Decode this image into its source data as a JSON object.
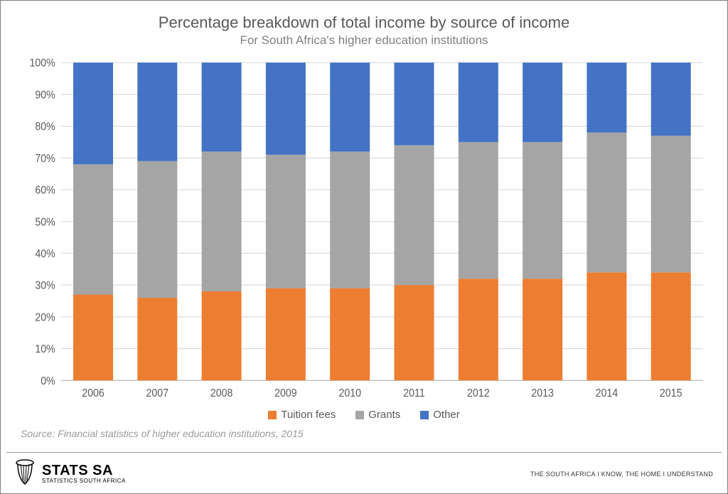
{
  "chart": {
    "type": "stacked-bar",
    "title": "Percentage breakdown of total income by source of income",
    "subtitle": "For South Africa's higher education institutions",
    "source": "Source: Financial statistics of higher education institutions, 2015",
    "categories": [
      "2006",
      "2007",
      "2008",
      "2009",
      "2010",
      "2011",
      "2012",
      "2013",
      "2014",
      "2015"
    ],
    "series": [
      {
        "name": "Tuition fees",
        "color": "#ed7d31",
        "values": [
          27,
          26,
          28,
          29,
          29,
          30,
          32,
          32,
          34,
          34
        ]
      },
      {
        "name": "Grants",
        "color": "#a5a5a5",
        "values": [
          41,
          43,
          44,
          42,
          43,
          44,
          43,
          43,
          44,
          43
        ]
      },
      {
        "name": "Other",
        "color": "#4472c4",
        "values": [
          32,
          31,
          28,
          29,
          28,
          26,
          25,
          25,
          22,
          23
        ]
      }
    ],
    "y_axis": {
      "min": 0,
      "max": 100,
      "tick_step": 10,
      "suffix": "%",
      "labels": [
        "0%",
        "10%",
        "20%",
        "30%",
        "40%",
        "50%",
        "60%",
        "70%",
        "80%",
        "90%",
        "100%"
      ]
    },
    "style": {
      "title_fontsize": 22,
      "subtitle_fontsize": 17,
      "title_color": "#595959",
      "subtitle_color": "#808080",
      "axis_label_fontsize": 14,
      "axis_label_color": "#595959",
      "grid_color": "#d9d9d9",
      "baseline_color": "#b0b0b0",
      "background_color": "#ffffff",
      "bar_width_ratio": 0.62,
      "legend_fontsize": 15
    }
  },
  "footer": {
    "brand_main": "STATS SA",
    "brand_sub": "STATISTICS SOUTH AFRICA",
    "tagline": "THE SOUTH AFRICA I KNOW, THE HOME I UNDERSTAND"
  }
}
